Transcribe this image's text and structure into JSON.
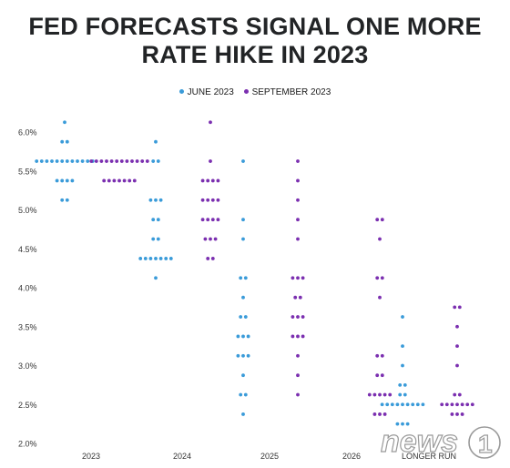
{
  "title_line1": "FED FORECASTS SIGNAL ONE MORE",
  "title_line2": "RATE HIKE IN 2023",
  "legend": [
    {
      "label": "JUNE 2023",
      "color": "#3a9bd9"
    },
    {
      "label": "SEPTEMBER 2023",
      "color": "#7b2fb0"
    }
  ],
  "watermark": "news1",
  "chart_data": {
    "type": "scatter",
    "subtype": "dot-plot",
    "categories": [
      "2023",
      "2024",
      "2025",
      "2026",
      "LONGER RUN"
    ],
    "ylim": [
      2.0,
      6.0
    ],
    "yticks": [
      "2.0%",
      "2.5%",
      "3.0%",
      "3.5%",
      "4.0%",
      "4.5%",
      "5.0%",
      "5.5%",
      "6.0%"
    ],
    "grid": false,
    "legend_position": "top",
    "series": [
      {
        "name": "JUNE 2023",
        "color": "#3a9bd9",
        "dots": {
          "2023": [
            [
              6.125,
              1
            ],
            [
              5.875,
              2
            ],
            [
              5.625,
              12
            ],
            [
              5.375,
              4
            ],
            [
              5.125,
              2
            ]
          ],
          "2024": [
            [
              5.875,
              1
            ],
            [
              5.625,
              2
            ],
            [
              5.125,
              3
            ],
            [
              4.875,
              2
            ],
            [
              4.625,
              2
            ],
            [
              4.375,
              7
            ],
            [
              4.125,
              1
            ]
          ],
          "2025": [
            [
              5.625,
              1
            ],
            [
              4.875,
              1
            ],
            [
              4.625,
              1
            ],
            [
              4.125,
              2
            ],
            [
              3.875,
              1
            ],
            [
              3.625,
              2
            ],
            [
              3.375,
              3
            ],
            [
              3.125,
              3
            ],
            [
              2.875,
              1
            ],
            [
              2.625,
              2
            ],
            [
              2.375,
              1
            ]
          ],
          "2026": [],
          "LONGER RUN": [
            [
              3.625,
              1
            ],
            [
              3.25,
              1
            ],
            [
              3.0,
              1
            ],
            [
              2.75,
              2
            ],
            [
              2.625,
              2
            ],
            [
              2.5,
              9
            ],
            [
              2.25,
              3
            ]
          ]
        }
      },
      {
        "name": "SEPTEMBER 2023",
        "color": "#7b2fb0",
        "dots": {
          "2023": [
            [
              5.625,
              12
            ],
            [
              5.375,
              7
            ]
          ],
          "2024": [
            [
              6.125,
              1
            ],
            [
              5.625,
              1
            ],
            [
              5.375,
              4
            ],
            [
              5.125,
              4
            ],
            [
              4.875,
              4
            ],
            [
              4.625,
              3
            ],
            [
              4.375,
              2
            ]
          ],
          "2025": [
            [
              5.625,
              1
            ],
            [
              5.375,
              1
            ],
            [
              5.125,
              1
            ],
            [
              4.875,
              1
            ],
            [
              4.625,
              1
            ],
            [
              4.125,
              3
            ],
            [
              3.875,
              2
            ],
            [
              3.625,
              3
            ],
            [
              3.375,
              3
            ],
            [
              3.125,
              1
            ],
            [
              2.875,
              1
            ],
            [
              2.625,
              1
            ]
          ],
          "2026": [
            [
              4.875,
              2
            ],
            [
              4.625,
              1
            ],
            [
              4.125,
              2
            ],
            [
              3.875,
              1
            ],
            [
              3.125,
              2
            ],
            [
              2.875,
              2
            ],
            [
              2.625,
              5
            ],
            [
              2.375,
              3
            ]
          ],
          "LONGER RUN": [
            [
              3.75,
              2
            ],
            [
              3.5,
              1
            ],
            [
              3.25,
              1
            ],
            [
              3.0,
              1
            ],
            [
              2.625,
              2
            ],
            [
              2.5,
              7
            ],
            [
              2.375,
              3
            ]
          ]
        }
      }
    ]
  }
}
